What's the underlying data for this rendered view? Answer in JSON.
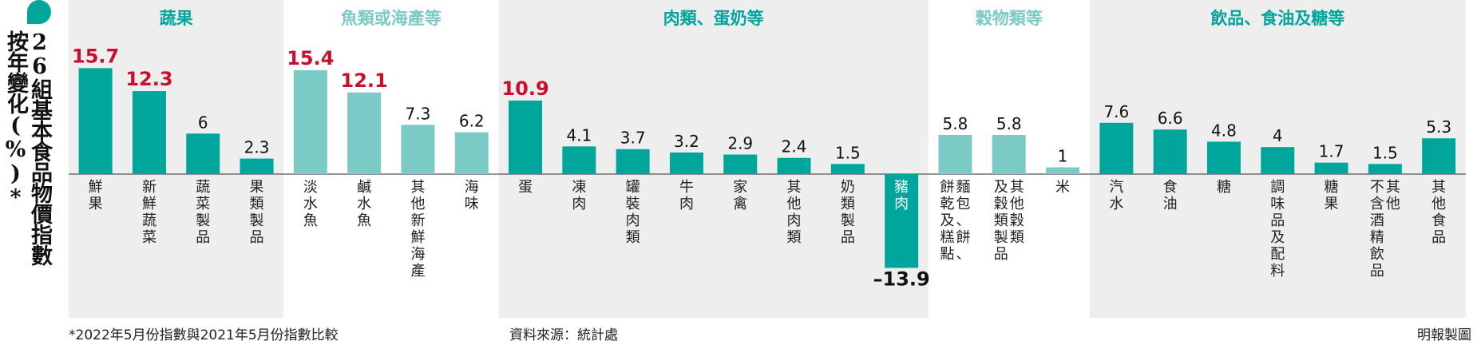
{
  "title": {
    "line1": "26組基本食品物價指數",
    "line2": "按年變化(%)*"
  },
  "footnote": "*2022年5月份指數與2021年5月份指數比較",
  "source": "資料來源：統計處",
  "credit": "明報製圖",
  "colors": {
    "dark": "#00a59c",
    "light": "#7ccac5",
    "highlight_label": "#c8102e",
    "group_bg": "#eeeeee",
    "baseline": "#555555"
  },
  "chart_data": {
    "type": "bar",
    "ylim": [
      -13.9,
      15.7
    ],
    "groups": [
      {
        "name": "蔬果",
        "shade": "dark",
        "start": 0,
        "end": 3
      },
      {
        "name": "魚類或海產等",
        "shade": "light",
        "start": 4,
        "end": 7
      },
      {
        "name": "肉類、蛋奶等",
        "shade": "dark",
        "start": 8,
        "end": 15
      },
      {
        "name": "穀物類等",
        "shade": "light",
        "start": 16,
        "end": 18
      },
      {
        "name": "飲品、食油及糖等",
        "shade": "dark",
        "start": 19,
        "end": 25
      }
    ],
    "categories": [
      {
        "label": "鮮果",
        "value": 15.7,
        "value_label": "15.7",
        "highlight": true
      },
      {
        "label": "新鮮蔬菜",
        "value": 12.3,
        "value_label": "12.3",
        "highlight": true
      },
      {
        "label": "蔬菜製品",
        "value": 6,
        "value_label": "6"
      },
      {
        "label": "果類製品",
        "value": 2.3,
        "value_label": "2.3"
      },
      {
        "label": "淡水魚",
        "value": 15.4,
        "value_label": "15.4",
        "highlight": true
      },
      {
        "label": "鹹水魚",
        "value": 12.1,
        "value_label": "12.1",
        "highlight": true
      },
      {
        "label": "其他新鮮海產",
        "value": 7.3,
        "value_label": "7.3"
      },
      {
        "label": "海味",
        "value": 6.2,
        "value_label": "6.2"
      },
      {
        "label": "蛋",
        "value": 10.9,
        "value_label": "10.9",
        "highlight": true
      },
      {
        "label": "凍肉",
        "value": 4.1,
        "value_label": "4.1"
      },
      {
        "label": "罐裝肉類",
        "value": 3.7,
        "value_label": "3.7"
      },
      {
        "label": "牛肉",
        "value": 3.2,
        "value_label": "3.2"
      },
      {
        "label": "家禽",
        "value": 2.9,
        "value_label": "2.9"
      },
      {
        "label": "其他肉類",
        "value": 2.4,
        "value_label": "2.4"
      },
      {
        "label": "奶類製品",
        "value": 1.5,
        "value_label": "1.5"
      },
      {
        "label": "豬肉",
        "value": -13.9,
        "value_label": "–13.9",
        "negative": true
      },
      {
        "label": "麵包、餅、",
        "label2": "餅乾及糕點",
        "value": 5.8,
        "value_label": "5.8"
      },
      {
        "label": "其他穀類",
        "label2": "及穀類製品",
        "value": 5.8,
        "value_label": "5.8"
      },
      {
        "label": "米",
        "value": 1,
        "value_label": "1"
      },
      {
        "label": "汽水",
        "value": 7.6,
        "value_label": "7.6"
      },
      {
        "label": "食油",
        "value": 6.6,
        "value_label": "6.6"
      },
      {
        "label": "糖",
        "value": 4.8,
        "value_label": "4.8"
      },
      {
        "label": "調味品及配料",
        "value": 4,
        "value_label": "4"
      },
      {
        "label": "糖果",
        "value": 1.7,
        "value_label": "1.7"
      },
      {
        "label": "其他",
        "label2": "不含酒精飲品",
        "value": 1.5,
        "value_label": "1.5"
      },
      {
        "label": "其他食品",
        "value": 5.3,
        "value_label": "5.3"
      }
    ]
  }
}
